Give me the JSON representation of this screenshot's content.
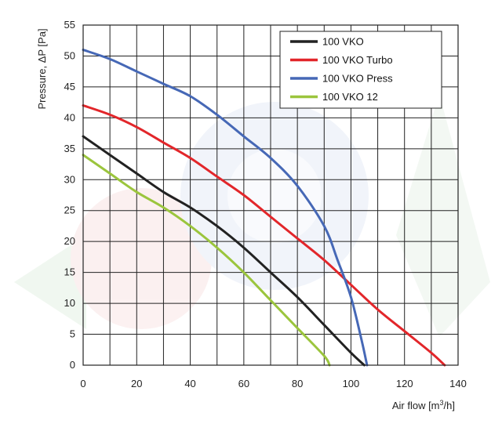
{
  "chart_data": {
    "type": "line",
    "title": "",
    "xlabel": "Air flow [m³/h]",
    "ylabel": "Pressure, ΔP [Pa]",
    "xlim": [
      0,
      140
    ],
    "ylim": [
      0,
      55
    ],
    "x_ticks": [
      0,
      20,
      40,
      60,
      80,
      100,
      120,
      140
    ],
    "y_ticks": [
      0,
      5,
      10,
      15,
      20,
      25,
      30,
      35,
      40,
      45,
      50,
      55
    ],
    "x_grid_step": 10,
    "y_grid_step": 5,
    "grid": true,
    "legend_position": "top-right",
    "series": [
      {
        "name": "100 VKO",
        "color": "#222222",
        "points": [
          [
            0,
            37
          ],
          [
            10,
            34
          ],
          [
            20,
            31
          ],
          [
            30,
            28
          ],
          [
            40,
            25.5
          ],
          [
            50,
            22.5
          ],
          [
            60,
            19
          ],
          [
            70,
            15
          ],
          [
            80,
            11
          ],
          [
            90,
            6.5
          ],
          [
            100,
            2
          ],
          [
            105,
            0
          ]
        ]
      },
      {
        "name": "100 VKO Turbo",
        "color": "#e2262a",
        "points": [
          [
            0,
            42
          ],
          [
            10,
            40.5
          ],
          [
            20,
            38.5
          ],
          [
            30,
            36
          ],
          [
            40,
            33.5
          ],
          [
            50,
            30.5
          ],
          [
            60,
            27.5
          ],
          [
            70,
            24
          ],
          [
            80,
            20.5
          ],
          [
            90,
            17
          ],
          [
            100,
            13
          ],
          [
            110,
            9
          ],
          [
            120,
            5.5
          ],
          [
            130,
            2
          ],
          [
            135,
            0
          ]
        ]
      },
      {
        "name": "100 VKO Press",
        "color": "#4668b6",
        "points": [
          [
            0,
            51
          ],
          [
            10,
            49.5
          ],
          [
            20,
            47.5
          ],
          [
            30,
            45.5
          ],
          [
            40,
            43.5
          ],
          [
            50,
            40.5
          ],
          [
            60,
            37
          ],
          [
            70,
            33.5
          ],
          [
            80,
            29
          ],
          [
            90,
            22.5
          ],
          [
            95,
            17
          ],
          [
            100,
            11
          ],
          [
            104,
            4
          ],
          [
            106,
            0
          ]
        ]
      },
      {
        "name": "100 VKO 12",
        "color": "#9bc53d",
        "points": [
          [
            0,
            34
          ],
          [
            10,
            31
          ],
          [
            20,
            28
          ],
          [
            30,
            25.5
          ],
          [
            40,
            22.5
          ],
          [
            50,
            19
          ],
          [
            60,
            15
          ],
          [
            70,
            10.5
          ],
          [
            80,
            6
          ],
          [
            90,
            1.5
          ],
          [
            92,
            0
          ]
        ]
      }
    ]
  }
}
